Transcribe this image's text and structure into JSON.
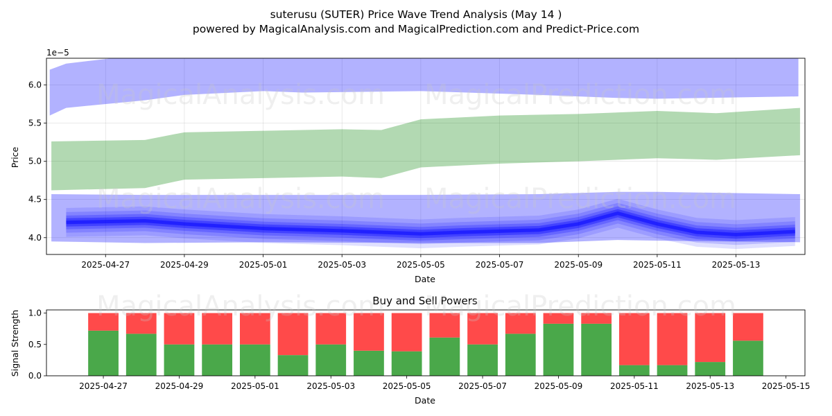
{
  "title": "suterusu (SUTER) Price Wave Trend Analysis (May 14 )",
  "subtitle": "powered by MagicalAnalysis.com and MagicalPrediction.com and Predict-Price.com",
  "watermarks": [
    "MagicalAnalysis.com",
    "MagicalPrediction.com"
  ],
  "colors": {
    "band_blue": "#0000ff",
    "band_green": "#008000",
    "buy": "#4aa84a",
    "sell": "#ff4a4a",
    "grid": "#b0b0b0"
  },
  "chart_data": [
    {
      "type": "area",
      "xlabel": "Date",
      "ylabel": "Price",
      "offset_text": "1e−5",
      "ylim": [
        3.78,
        6.35
      ],
      "xlim": [
        "2025-04-25T12:00",
        "2025-05-14T18:00"
      ],
      "grid": true,
      "x_ticks": [
        "2025-04-27",
        "2025-04-29",
        "2025-05-01",
        "2025-05-03",
        "2025-05-05",
        "2025-05-07",
        "2025-05-09",
        "2025-05-11",
        "2025-05-13"
      ],
      "y_ticks": [
        "4.0",
        "4.5",
        "5.0",
        "5.5",
        "6.0"
      ],
      "series": [
        {
          "kind": "upper-band",
          "x": [
            "2025-04-25T14:00",
            "2025-04-26T00:00",
            "2025-04-28T00:00",
            "2025-04-29T00:00",
            "2025-05-01T00:00",
            "2025-05-02T00:00",
            "2025-05-05T00:00",
            "2025-05-08T00:00",
            "2025-05-10T00:00",
            "2025-05-11T00:00",
            "2025-05-14T14:00"
          ],
          "upper": [
            6.2,
            6.28,
            6.4,
            6.4,
            6.4,
            6.4,
            6.4,
            6.4,
            6.4,
            6.4,
            6.35
          ],
          "lower": [
            5.6,
            5.7,
            5.8,
            5.87,
            5.92,
            5.9,
            5.92,
            5.87,
            5.83,
            5.82,
            5.85
          ]
        },
        {
          "kind": "middle-band",
          "x": [
            "2025-04-25T15:00",
            "2025-04-28T00:00",
            "2025-04-29T00:00",
            "2025-05-01T00:00",
            "2025-05-03T00:00",
            "2025-05-04T00:00",
            "2025-05-05T00:00",
            "2025-05-07T00:00",
            "2025-05-09T00:00",
            "2025-05-11T00:00",
            "2025-05-12T12:00",
            "2025-05-14T15:00"
          ],
          "upper": [
            5.26,
            5.28,
            5.38,
            5.4,
            5.42,
            5.41,
            5.55,
            5.6,
            5.62,
            5.66,
            5.63,
            5.7
          ],
          "lower": [
            4.62,
            4.65,
            4.76,
            4.78,
            4.8,
            4.78,
            4.92,
            4.97,
            5.0,
            5.04,
            5.02,
            5.08
          ]
        },
        {
          "kind": "lower-band",
          "x": [
            "2025-04-25T15:00",
            "2025-04-28T00:00",
            "2025-05-01T00:00",
            "2025-05-05T00:00",
            "2025-05-08T00:00",
            "2025-05-10T00:00",
            "2025-05-11T00:00",
            "2025-05-14T15:00"
          ],
          "upper": [
            4.57,
            4.56,
            4.56,
            4.56,
            4.57,
            4.6,
            4.6,
            4.57
          ],
          "lower": [
            3.95,
            3.93,
            3.94,
            3.93,
            3.93,
            3.97,
            3.96,
            3.94
          ]
        },
        {
          "kind": "wave-path",
          "x": [
            "2025-04-26T00:00",
            "2025-04-28T00:00",
            "2025-04-29T00:00",
            "2025-05-01T00:00",
            "2025-05-03T00:00",
            "2025-05-05T00:00",
            "2025-05-06T00:00",
            "2025-05-08T00:00",
            "2025-05-09T00:00",
            "2025-05-10T00:00",
            "2025-05-11T00:00",
            "2025-05-12T00:00",
            "2025-05-13T00:00",
            "2025-05-14T12:00"
          ],
          "y": [
            4.2,
            4.22,
            4.18,
            4.12,
            4.09,
            4.05,
            4.07,
            4.1,
            4.18,
            4.32,
            4.18,
            4.07,
            4.04,
            4.08
          ],
          "width": 0.18
        }
      ]
    },
    {
      "type": "bar",
      "title": "Buy and Sell Powers",
      "xlabel": "Date",
      "ylabel": "Signal Strength",
      "ylim": [
        0,
        1.05
      ],
      "xlim": [
        "2025-04-25T12:00",
        "2025-05-15T12:00"
      ],
      "x_ticks": [
        "2025-04-27",
        "2025-04-29",
        "2025-05-01",
        "2025-05-03",
        "2025-05-05",
        "2025-05-07",
        "2025-05-09",
        "2025-05-11",
        "2025-05-13",
        "2025-05-15"
      ],
      "y_ticks": [
        "0.0",
        "0.5",
        "1.0"
      ],
      "categories": [
        "2025-04-27",
        "2025-04-28",
        "2025-04-29",
        "2025-04-30",
        "2025-05-01",
        "2025-05-02",
        "2025-05-03",
        "2025-05-04",
        "2025-05-05",
        "2025-05-06",
        "2025-05-07",
        "2025-05-08",
        "2025-05-09",
        "2025-05-10",
        "2025-05-11",
        "2025-05-12",
        "2025-05-13",
        "2025-05-14"
      ],
      "series": [
        {
          "kind": "buy",
          "values": [
            0.72,
            0.67,
            0.5,
            0.5,
            0.5,
            0.33,
            0.5,
            0.4,
            0.39,
            0.61,
            0.5,
            0.67,
            0.83,
            0.83,
            0.17,
            0.17,
            0.22,
            0.56
          ]
        },
        {
          "kind": "sell",
          "values": [
            0.28,
            0.33,
            0.5,
            0.5,
            0.5,
            0.67,
            0.5,
            0.6,
            0.61,
            0.39,
            0.5,
            0.33,
            0.17,
            0.17,
            0.83,
            0.83,
            0.78,
            0.44
          ]
        }
      ]
    }
  ]
}
